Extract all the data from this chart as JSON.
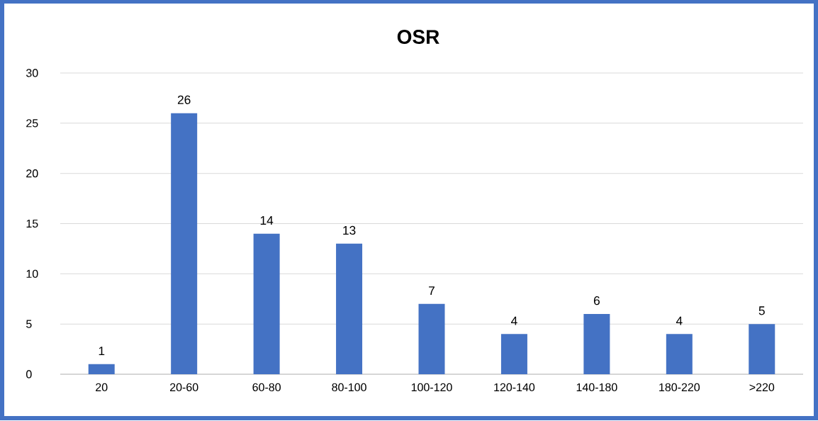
{
  "chart_data": {
    "type": "bar",
    "title": "OSR",
    "categories": [
      "20",
      "20-60",
      "60-80",
      "80-100",
      "100-120",
      "120-140",
      "140-180",
      "180-220",
      ">220"
    ],
    "values": [
      1,
      26,
      14,
      13,
      7,
      4,
      6,
      4,
      5
    ],
    "color": "#4472c4",
    "ylim": [
      0,
      30
    ],
    "yticks": [
      0,
      5,
      10,
      15,
      20,
      25,
      30
    ],
    "grid": "y",
    "data_labels": true
  }
}
